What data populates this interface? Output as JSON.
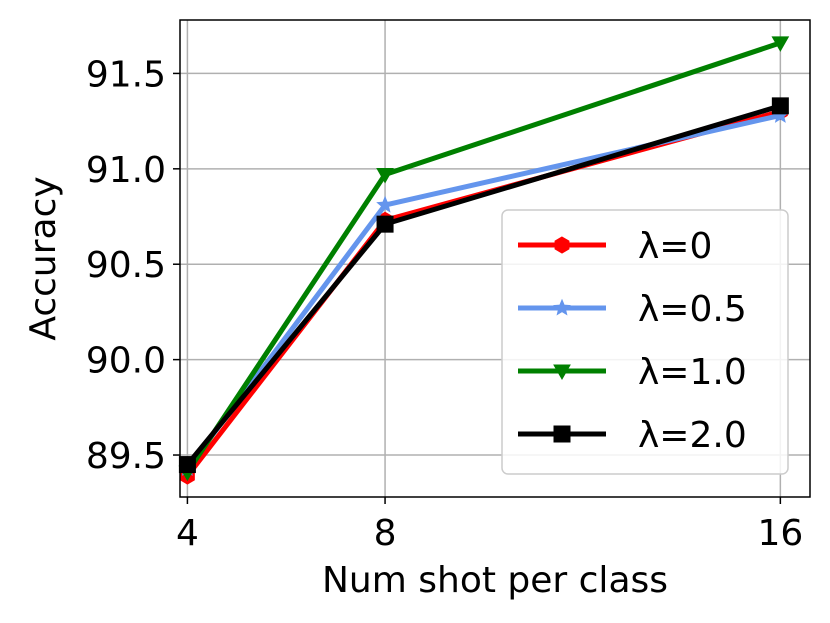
{
  "chart_data": {
    "type": "line",
    "title": "",
    "xlabel": "Num shot per class",
    "ylabel": "Accuracy",
    "x": [
      4,
      8,
      16
    ],
    "x_tick_labels": [
      "4",
      "8",
      "16"
    ],
    "y_ticks": [
      89.5,
      90.0,
      90.5,
      91.0,
      91.5
    ],
    "y_tick_labels": [
      "89.5",
      "90.0",
      "90.5",
      "91.0",
      "91.5"
    ],
    "xlim": [
      3.85,
      16.6
    ],
    "ylim": [
      89.28,
      91.78
    ],
    "grid": true,
    "legend_position": "center-right",
    "series": [
      {
        "name": "λ=0",
        "values": [
          89.39,
          90.73,
          91.3
        ],
        "color": "#ff0000",
        "marker": "hexagon"
      },
      {
        "name": "λ=0.5",
        "values": [
          89.43,
          90.81,
          91.28
        ],
        "color": "#6495ed",
        "marker": "star"
      },
      {
        "name": "λ=1.0",
        "values": [
          89.41,
          90.97,
          91.66
        ],
        "color": "#008000",
        "marker": "triangle-down"
      },
      {
        "name": "λ=2.0",
        "values": [
          89.45,
          90.71,
          91.33
        ],
        "color": "#000000",
        "marker": "square"
      }
    ]
  }
}
